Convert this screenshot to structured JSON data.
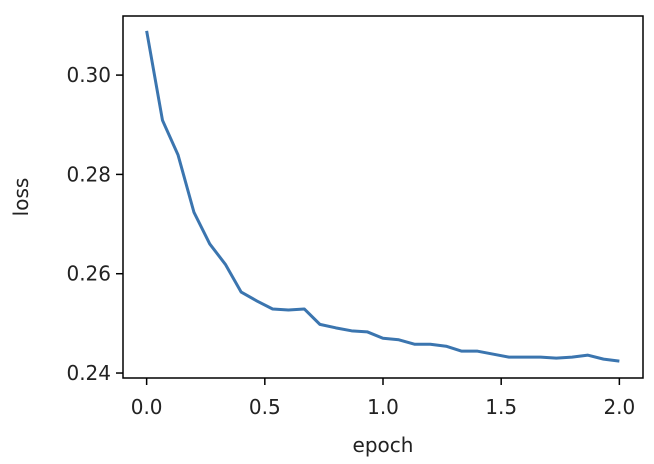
{
  "chart_data": {
    "type": "line",
    "xlabel": "epoch",
    "ylabel": "loss",
    "x": [
      0,
      0.067,
      0.133,
      0.2,
      0.267,
      0.333,
      0.4,
      0.467,
      0.533,
      0.6,
      0.667,
      0.733,
      0.8,
      0.867,
      0.933,
      1.0,
      1.067,
      1.133,
      1.2,
      1.267,
      1.333,
      1.4,
      1.467,
      1.533,
      1.6,
      1.667,
      1.733,
      1.8,
      1.867,
      1.933,
      2.0
    ],
    "series": [
      {
        "color": "#3b75af",
        "values": [
          0.3089,
          0.2909,
          0.2839,
          0.2724,
          0.266,
          0.2619,
          0.2563,
          0.2545,
          0.2529,
          0.2527,
          0.2529,
          0.2498,
          0.2491,
          0.2485,
          0.2483,
          0.247,
          0.2467,
          0.2458,
          0.2458,
          0.2454,
          0.2444,
          0.2444,
          0.2438,
          0.2432,
          0.2432,
          0.2432,
          0.243,
          0.2432,
          0.2436,
          0.2428,
          0.2424
        ]
      }
    ],
    "xlim": [
      -0.1,
      2.1
    ],
    "ylim": [
      0.239,
      0.3119
    ],
    "xticks": [
      {
        "value": 0,
        "label": "0.0"
      },
      {
        "value": 0.5,
        "label": "0.5"
      },
      {
        "value": 1,
        "label": "1.0"
      },
      {
        "value": 1.5,
        "label": "1.5"
      },
      {
        "value": 2,
        "label": "2.0"
      }
    ],
    "yticks": [
      0.24,
      0.26,
      0.28,
      {
        "value": 0.3,
        "label": "0.30"
      }
    ],
    "grid": false
  }
}
